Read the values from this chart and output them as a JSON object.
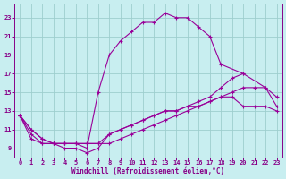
{
  "background_color": "#c8eef0",
  "line_color": "#990099",
  "grid_color": "#9ecece",
  "xlabel": "Windchill (Refroidissement éolien,°C)",
  "xlabel_color": "#880088",
  "tick_color": "#880088",
  "xlim": [
    -0.5,
    23.5
  ],
  "ylim": [
    8.0,
    24.5
  ],
  "yticks": [
    9,
    11,
    13,
    15,
    17,
    19,
    21,
    23
  ],
  "xticks": [
    0,
    1,
    2,
    3,
    4,
    5,
    6,
    7,
    8,
    9,
    10,
    11,
    12,
    13,
    14,
    15,
    16,
    17,
    18,
    19,
    20,
    21,
    22,
    23
  ],
  "series1_x": [
    0,
    1,
    2,
    3,
    4,
    5,
    6,
    7,
    8,
    9,
    10,
    11,
    12,
    13,
    14,
    15,
    16,
    17,
    18,
    20
  ],
  "series1_y": [
    12.5,
    11.0,
    10.0,
    9.5,
    9.5,
    9.5,
    9.0,
    15.0,
    19.0,
    20.5,
    21.5,
    22.5,
    22.5,
    23.5,
    23.0,
    23.0,
    22.0,
    21.0,
    18.0,
    17.0
  ],
  "series2_x": [
    0,
    1,
    2,
    3,
    4,
    5,
    6,
    7,
    8,
    9,
    10,
    11,
    12,
    13,
    14,
    15,
    16,
    17,
    18,
    19,
    20,
    21,
    22,
    23
  ],
  "series2_y": [
    12.5,
    11.0,
    10.0,
    9.5,
    9.5,
    9.5,
    9.5,
    9.5,
    9.5,
    10.0,
    10.5,
    11.0,
    11.5,
    12.0,
    12.5,
    13.0,
    13.5,
    14.0,
    14.5,
    15.0,
    15.5,
    15.5,
    15.5,
    14.5
  ],
  "series3_x": [
    0,
    1,
    2,
    3,
    4,
    5,
    6,
    7,
    8,
    9,
    10,
    11,
    12,
    13,
    14,
    15,
    16,
    17,
    18,
    19,
    20,
    22,
    23
  ],
  "series3_y": [
    12.5,
    10.5,
    9.5,
    9.5,
    9.5,
    9.5,
    9.5,
    9.5,
    10.5,
    11.0,
    11.5,
    12.0,
    12.5,
    13.0,
    13.0,
    13.5,
    14.0,
    14.5,
    15.5,
    16.5,
    17.0,
    15.5,
    13.5
  ],
  "series4_x": [
    0,
    1,
    2,
    3,
    4,
    5,
    6,
    7,
    8,
    9,
    10,
    11,
    12,
    13,
    14,
    15,
    16,
    17,
    18,
    19,
    20,
    21,
    22,
    23
  ],
  "series4_y": [
    12.5,
    10.0,
    9.5,
    9.5,
    9.0,
    9.0,
    8.5,
    9.0,
    10.5,
    11.0,
    11.5,
    12.0,
    12.5,
    13.0,
    13.0,
    13.5,
    13.5,
    14.0,
    14.5,
    14.5,
    13.5,
    13.5,
    13.5,
    13.0
  ]
}
